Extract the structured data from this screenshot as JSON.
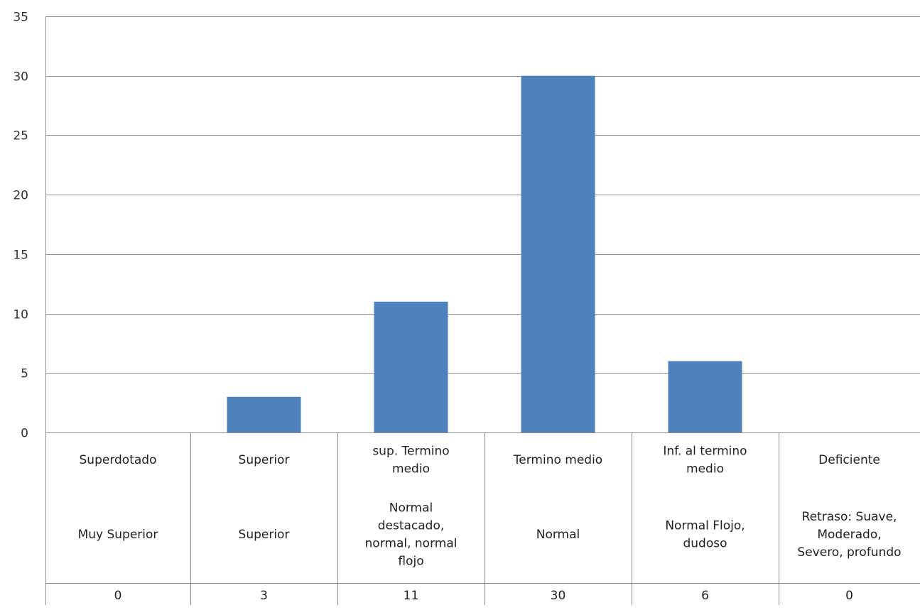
{
  "chart_data": {
    "type": "bar",
    "categories": [
      "Superdotado",
      "Superior",
      "sup. Termino medio",
      "Termino medio",
      "Inf. al termino medio",
      "Deficiente"
    ],
    "category_labels": [
      [
        "Superdotado"
      ],
      [
        "Superior"
      ],
      [
        "sup. Termino",
        "medio"
      ],
      [
        "Termino medio"
      ],
      [
        "Inf. al termino",
        "medio"
      ],
      [
        "Deficiente"
      ]
    ],
    "descriptions": [
      [
        "Muy Superior"
      ],
      [
        "Superior"
      ],
      [
        "Normal",
        "destacado,",
        "normal, normal",
        "flojo"
      ],
      [
        "Normal"
      ],
      [
        "Normal Flojo,",
        "dudoso"
      ],
      [
        "Retraso: Suave,",
        "Moderado,",
        "Severo, profundo"
      ]
    ],
    "values": [
      0,
      3,
      11,
      30,
      6,
      0
    ],
    "value_labels": [
      "0",
      "3",
      "11",
      "30",
      "6",
      "0"
    ],
    "yticks": [
      "0",
      "5",
      "10",
      "15",
      "20",
      "25",
      "30",
      "35"
    ],
    "ylim": [
      0,
      35
    ],
    "grid": true,
    "bar_color": "#4F81BD",
    "grid_color": "#8C8C8C"
  }
}
